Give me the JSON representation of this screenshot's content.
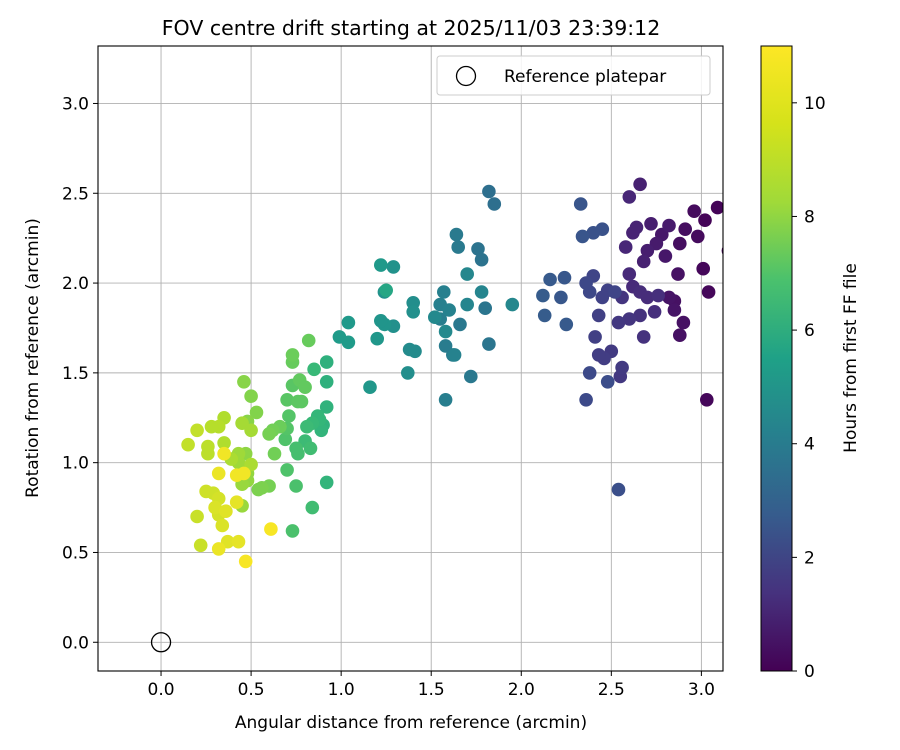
{
  "chart_data": {
    "type": "scatter",
    "title": "FOV centre drift starting at 2025/11/03 23:39:12",
    "xlabel": "Angular distance from reference (arcmin)",
    "ylabel": "Rotation from reference (arcmin)",
    "xlim": [
      -0.35,
      3.12
    ],
    "ylim": [
      -0.16,
      3.32
    ],
    "xticks": [
      0.0,
      0.5,
      1.0,
      1.5,
      2.0,
      2.5,
      3.0
    ],
    "xtick_labels": [
      "0.0",
      "0.5",
      "1.0",
      "1.5",
      "2.0",
      "2.5",
      "3.0"
    ],
    "yticks": [
      0.0,
      0.5,
      1.0,
      1.5,
      2.0,
      2.5,
      3.0
    ],
    "ytick_labels": [
      "0.0",
      "0.5",
      "1.0",
      "1.5",
      "2.0",
      "2.5",
      "3.0"
    ],
    "grid": true,
    "legend": {
      "position": "top-right",
      "entries": [
        {
          "label": "Reference platepar",
          "marker": "open-circle"
        }
      ]
    },
    "reference_point": {
      "x": 0.0,
      "y": 0.0
    },
    "colorbar": {
      "label": "Hours from first FF file",
      "colormap": "viridis",
      "range": [
        0,
        11
      ],
      "ticks": [
        0,
        2,
        4,
        6,
        8,
        10
      ],
      "tick_labels": [
        "0",
        "2",
        "4",
        "6",
        "8",
        "10"
      ]
    },
    "columns": [
      "x",
      "y",
      "hours"
    ],
    "points": [
      [
        3.02,
        2.35,
        0.1
      ],
      [
        3.09,
        2.42,
        0.1
      ],
      [
        3.15,
        2.18,
        0.1
      ],
      [
        3.04,
        1.95,
        0.2
      ],
      [
        3.03,
        1.35,
        0.2
      ],
      [
        3.01,
        2.08,
        0.2
      ],
      [
        2.96,
        2.4,
        0.3
      ],
      [
        2.98,
        2.26,
        0.3
      ],
      [
        2.91,
        2.3,
        0.4
      ],
      [
        2.88,
        2.22,
        0.4
      ],
      [
        2.87,
        2.05,
        0.5
      ],
      [
        2.85,
        1.9,
        0.5
      ],
      [
        2.88,
        1.71,
        0.5
      ],
      [
        2.9,
        1.78,
        0.5
      ],
      [
        2.85,
        1.85,
        0.6
      ],
      [
        2.82,
        1.92,
        0.6
      ],
      [
        2.8,
        2.15,
        0.7
      ],
      [
        2.78,
        2.27,
        0.7
      ],
      [
        2.82,
        2.32,
        0.8
      ],
      [
        2.75,
        2.22,
        0.8
      ],
      [
        2.72,
        2.33,
        0.9
      ],
      [
        2.7,
        2.18,
        0.9
      ],
      [
        2.68,
        2.12,
        1.0
      ],
      [
        2.66,
        2.55,
        1.0
      ],
      [
        2.64,
        2.31,
        1.1
      ],
      [
        2.62,
        2.28,
        1.1
      ],
      [
        2.6,
        2.48,
        1.2
      ],
      [
        2.58,
        2.2,
        1.2
      ],
      [
        2.6,
        2.05,
        1.3
      ],
      [
        2.62,
        1.98,
        1.3
      ],
      [
        2.66,
        1.95,
        1.4
      ],
      [
        2.7,
        1.92,
        1.4
      ],
      [
        2.74,
        1.84,
        1.5
      ],
      [
        2.76,
        1.93,
        1.5
      ],
      [
        2.68,
        1.7,
        1.6
      ],
      [
        2.66,
        1.82,
        1.6
      ],
      [
        2.6,
        1.8,
        1.7
      ],
      [
        2.56,
        1.92,
        1.7
      ],
      [
        2.54,
        1.78,
        1.8
      ],
      [
        2.55,
        1.48,
        1.8
      ],
      [
        2.56,
        1.53,
        1.9
      ],
      [
        2.5,
        1.62,
        1.9
      ],
      [
        2.46,
        1.58,
        2.0
      ],
      [
        2.43,
        1.6,
        2.0
      ],
      [
        2.41,
        1.7,
        2.1
      ],
      [
        2.43,
        1.82,
        2.1
      ],
      [
        2.45,
        1.92,
        2.2
      ],
      [
        2.48,
        1.96,
        2.2
      ],
      [
        2.52,
        1.95,
        2.3
      ],
      [
        2.4,
        2.04,
        2.3
      ],
      [
        2.38,
        1.95,
        2.4
      ],
      [
        2.36,
        2.0,
        2.4
      ],
      [
        2.36,
        1.35,
        2.5
      ],
      [
        2.38,
        1.5,
        2.5
      ],
      [
        2.48,
        1.45,
        2.6
      ],
      [
        2.54,
        0.85,
        2.7
      ],
      [
        2.45,
        2.3,
        2.8
      ],
      [
        2.4,
        2.28,
        2.8
      ],
      [
        2.34,
        2.26,
        2.9
      ],
      [
        2.33,
        2.44,
        2.9
      ],
      [
        2.24,
        2.03,
        3.0
      ],
      [
        2.22,
        1.92,
        3.0
      ],
      [
        2.25,
        1.77,
        3.1
      ],
      [
        2.16,
        2.02,
        3.1
      ],
      [
        2.13,
        1.82,
        3.2
      ],
      [
        2.12,
        1.93,
        3.2
      ],
      [
        1.85,
        2.44,
        4.0
      ],
      [
        1.82,
        2.51,
        4.0
      ],
      [
        1.78,
        2.13,
        4.2
      ],
      [
        1.76,
        2.19,
        4.2
      ],
      [
        1.8,
        1.86,
        4.3
      ],
      [
        1.82,
        1.66,
        4.3
      ],
      [
        1.72,
        1.48,
        4.4
      ],
      [
        1.66,
        1.77,
        4.4
      ],
      [
        1.64,
        2.27,
        4.5
      ],
      [
        1.65,
        2.2,
        4.5
      ],
      [
        1.62,
        1.6,
        4.6
      ],
      [
        1.58,
        1.65,
        4.6
      ],
      [
        1.58,
        1.35,
        4.7
      ],
      [
        1.55,
        1.8,
        4.7
      ],
      [
        1.55,
        1.88,
        4.8
      ],
      [
        1.57,
        1.95,
        4.8
      ],
      [
        1.6,
        1.85,
        4.9
      ],
      [
        1.63,
        1.6,
        4.9
      ],
      [
        1.7,
        1.88,
        5.0
      ],
      [
        1.78,
        1.95,
        5.0
      ],
      [
        1.95,
        1.88,
        5.1
      ],
      [
        1.7,
        2.05,
        5.1
      ],
      [
        1.58,
        1.73,
        5.2
      ],
      [
        1.52,
        1.81,
        5.2
      ],
      [
        1.41,
        1.62,
        5.3
      ],
      [
        1.38,
        1.63,
        5.3
      ],
      [
        1.37,
        1.5,
        5.4
      ],
      [
        1.4,
        1.89,
        5.4
      ],
      [
        1.4,
        1.84,
        5.5
      ],
      [
        1.29,
        1.76,
        5.5
      ],
      [
        1.29,
        2.09,
        5.6
      ],
      [
        1.24,
        1.95,
        5.6
      ],
      [
        1.24,
        1.77,
        5.7
      ],
      [
        1.22,
        1.79,
        5.7
      ],
      [
        1.2,
        1.69,
        5.8
      ],
      [
        1.16,
        1.42,
        5.8
      ],
      [
        1.22,
        2.1,
        5.9
      ],
      [
        1.04,
        1.78,
        5.9
      ],
      [
        1.04,
        1.67,
        6.0
      ],
      [
        0.99,
        1.7,
        6.0
      ],
      [
        1.25,
        1.96,
        6.5
      ],
      [
        0.92,
        1.56,
        7.0
      ],
      [
        0.92,
        1.45,
        7.0
      ],
      [
        0.92,
        1.31,
        7.1
      ],
      [
        0.9,
        1.21,
        7.1
      ],
      [
        0.89,
        1.18,
        7.2
      ],
      [
        0.92,
        0.89,
        7.2
      ],
      [
        0.88,
        1.24,
        7.3
      ],
      [
        0.87,
        1.26,
        7.3
      ],
      [
        0.85,
        1.52,
        7.4
      ],
      [
        0.84,
        1.22,
        7.4
      ],
      [
        0.81,
        1.2,
        7.5
      ],
      [
        0.8,
        1.12,
        7.5
      ],
      [
        0.83,
        1.08,
        7.6
      ],
      [
        0.84,
        0.75,
        7.6
      ],
      [
        0.76,
        1.05,
        7.7
      ],
      [
        0.75,
        1.08,
        7.7
      ],
      [
        0.75,
        0.87,
        7.8
      ],
      [
        0.73,
        0.62,
        7.8
      ],
      [
        0.7,
        0.96,
        7.9
      ],
      [
        0.69,
        1.13,
        7.9
      ],
      [
        0.7,
        1.19,
        8.0
      ],
      [
        0.71,
        1.26,
        8.0
      ],
      [
        0.7,
        1.35,
        8.1
      ],
      [
        0.73,
        1.43,
        8.1
      ],
      [
        0.76,
        1.34,
        8.2
      ],
      [
        0.78,
        1.34,
        8.2
      ],
      [
        0.77,
        1.46,
        8.3
      ],
      [
        0.8,
        1.42,
        8.3
      ],
      [
        0.82,
        1.68,
        8.4
      ],
      [
        0.73,
        1.56,
        8.4
      ],
      [
        0.73,
        1.6,
        8.5
      ],
      [
        0.66,
        1.2,
        8.5
      ],
      [
        0.63,
        1.05,
        8.6
      ],
      [
        0.62,
        1.18,
        8.6
      ],
      [
        0.6,
        1.16,
        8.7
      ],
      [
        0.6,
        0.87,
        8.7
      ],
      [
        0.56,
        0.86,
        8.8
      ],
      [
        0.54,
        0.85,
        8.8
      ],
      [
        0.53,
        1.28,
        8.9
      ],
      [
        0.5,
        1.37,
        8.9
      ],
      [
        0.46,
        1.45,
        9.0
      ],
      [
        0.48,
        1.23,
        9.0
      ],
      [
        0.47,
        1.05,
        9.1
      ],
      [
        0.45,
        0.96,
        9.1
      ],
      [
        0.48,
        0.9,
        9.2
      ],
      [
        0.48,
        0.94,
        9.2
      ],
      [
        0.45,
        0.88,
        9.3
      ],
      [
        0.45,
        0.76,
        9.3
      ],
      [
        0.43,
        1.0,
        9.4
      ],
      [
        0.43,
        1.05,
        9.4
      ],
      [
        0.45,
        1.22,
        9.5
      ],
      [
        0.5,
        1.18,
        9.5
      ],
      [
        0.5,
        0.99,
        9.6
      ],
      [
        0.39,
        1.02,
        9.6
      ],
      [
        0.35,
        1.25,
        9.7
      ],
      [
        0.35,
        1.11,
        9.7
      ],
      [
        0.32,
        1.2,
        9.8
      ],
      [
        0.28,
        1.2,
        9.8
      ],
      [
        0.26,
        1.09,
        9.9
      ],
      [
        0.26,
        1.05,
        9.9
      ],
      [
        0.2,
        1.18,
        10.0
      ],
      [
        0.15,
        1.1,
        10.0
      ],
      [
        0.2,
        0.7,
        10.1
      ],
      [
        0.22,
        0.54,
        10.1
      ],
      [
        0.25,
        0.84,
        10.2
      ],
      [
        0.29,
        0.83,
        10.2
      ],
      [
        0.32,
        0.8,
        10.3
      ],
      [
        0.32,
        0.71,
        10.3
      ],
      [
        0.3,
        0.75,
        10.4
      ],
      [
        0.34,
        0.65,
        10.4
      ],
      [
        0.36,
        0.73,
        10.5
      ],
      [
        0.37,
        0.56,
        10.5
      ],
      [
        0.42,
        0.78,
        10.6
      ],
      [
        0.43,
        0.56,
        10.6
      ],
      [
        0.32,
        0.52,
        10.7
      ],
      [
        0.32,
        0.94,
        10.7
      ],
      [
        0.35,
        1.05,
        10.8
      ],
      [
        0.42,
        0.93,
        10.8
      ],
      [
        0.46,
        0.94,
        10.8
      ],
      [
        0.61,
        0.63,
        10.9
      ],
      [
        0.47,
        0.45,
        10.9
      ]
    ]
  }
}
